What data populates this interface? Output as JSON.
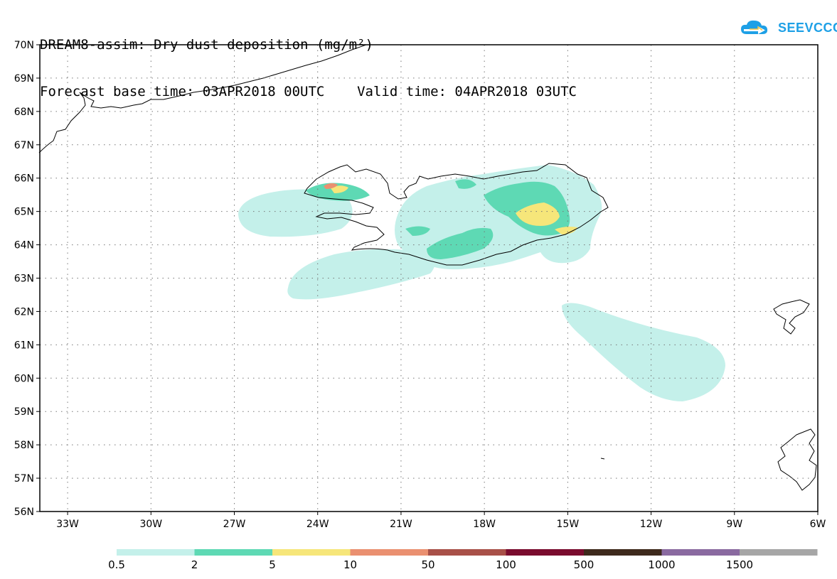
{
  "title": {
    "line1": "DREAM8-assim: Dry dust deposition (mg/m²)",
    "line2": "Forecast base time: 03APR2018 00UTC    Valid time: 04APR2018 03UTC"
  },
  "logo": {
    "text": "SEEVCCC",
    "icon": "cloud-arrow-icon",
    "color": "#1ea0e6"
  },
  "map": {
    "lon_ticks": [
      "33W",
      "30W",
      "27W",
      "24W",
      "21W",
      "18W",
      "15W",
      "12W",
      "9W",
      "6W"
    ],
    "lat_ticks": [
      "70N",
      "69N",
      "68N",
      "67N",
      "66N",
      "65N",
      "64N",
      "63N",
      "62N",
      "61N",
      "60N",
      "59N",
      "58N",
      "57N",
      "56N"
    ],
    "lon_range": [
      -34,
      -6
    ],
    "lat_range": [
      56,
      70
    ],
    "grid": "dotted"
  },
  "colorbar": {
    "labels": [
      "0.5",
      "2",
      "5",
      "10",
      "50",
      "100",
      "500",
      "1000",
      "1500"
    ],
    "colors": [
      "#c4f0ea",
      "#5ed9b4",
      "#f6e67a",
      "#ea9070",
      "#a85048",
      "#7a0c2e",
      "#3e2a1c",
      "#8a6aa0",
      "#a6a6a6"
    ]
  }
}
